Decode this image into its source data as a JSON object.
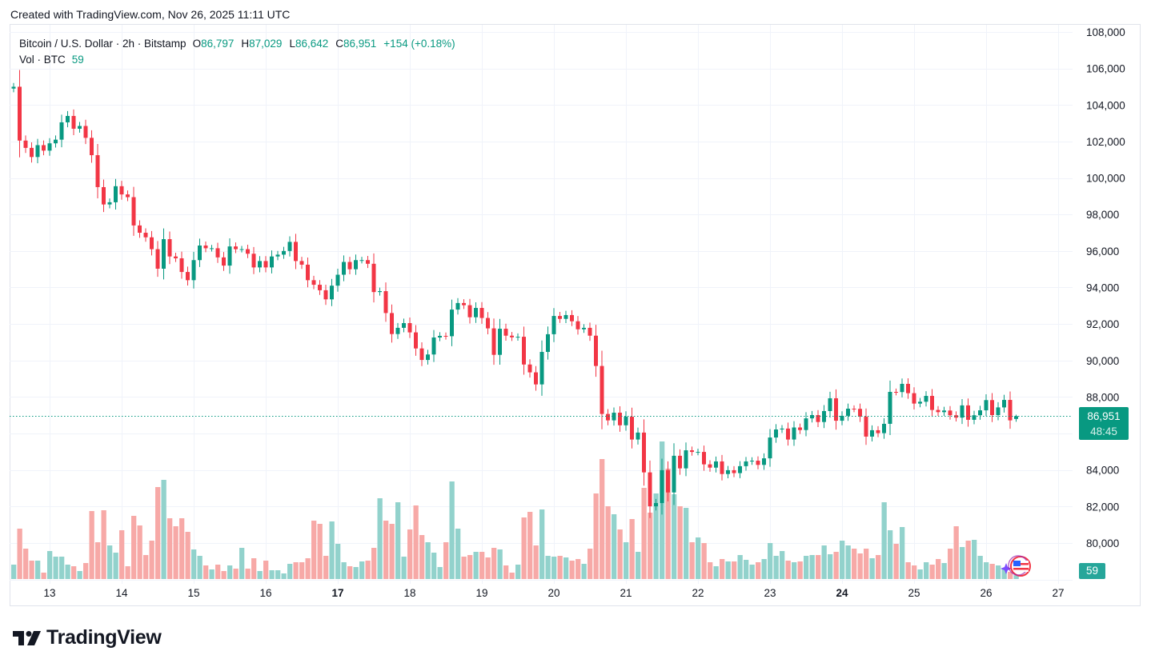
{
  "header": {
    "created": "Created with TradingView.com, Nov 26, 2025 11:11 UTC"
  },
  "legend": {
    "symbol": "Bitcoin / U.S. Dollar · 2h · Bitstamp",
    "open_label": "O",
    "open": "86,797",
    "high_label": "H",
    "high": "87,029",
    "low_label": "L",
    "low": "86,642",
    "close_label": "C",
    "close": "86,951",
    "change": "+154 (+0.18%)",
    "vol_label": "Vol · BTC",
    "vol_value": "59"
  },
  "price_label": {
    "price": "86,951",
    "countdown": "48:45"
  },
  "volume_label": {
    "value": "59"
  },
  "logo": {
    "text": "TradingView"
  },
  "colors": {
    "up": "#089981",
    "down": "#f23645",
    "vol_up": "#92d2cc",
    "vol_down": "#f7a9a7",
    "grid": "#f0f3fa"
  },
  "chart_data": {
    "type": "candlestick",
    "title": "Bitcoin / U.S. Dollar · 2h · Bitstamp",
    "interval": "2h",
    "first_open": 104900,
    "last_candle": {
      "open": 86797,
      "high": 87029,
      "low": 86642,
      "close": 86951
    },
    "close": [
      105000,
      102050,
      101650,
      101150,
      101800,
      101500,
      101900,
      102100,
      103050,
      103400,
      102700,
      102850,
      102200,
      101250,
      99500,
      98550,
      98670,
      99550,
      99100,
      98950,
      97400,
      97000,
      96750,
      96100,
      95030,
      96650,
      95700,
      95600,
      94850,
      94400,
      95500,
      96300,
      96150,
      96150,
      95650,
      95200,
      96250,
      96100,
      96100,
      95850,
      95100,
      95450,
      95100,
      95700,
      95800,
      96000,
      96500,
      95450,
      95250,
      94400,
      94150,
      93850,
      93350,
      94100,
      94700,
      95400,
      95000,
      95500,
      95500,
      95300,
      93750,
      93800,
      92600,
      91450,
      91790,
      92050,
      91540,
      90660,
      90030,
      90330,
      91260,
      91350,
      91330,
      92790,
      93150,
      93030,
      92370,
      92880,
      92330,
      91760,
      90310,
      91740,
      91360,
      91270,
      91300,
      89780,
      89350,
      88690,
      90470,
      91440,
      92440,
      92280,
      92490,
      92150,
      91710,
      91790,
      91360,
      89700,
      87070,
      86720,
      87140,
      86450,
      86920,
      85670,
      86050,
      83870,
      82010,
      82190,
      83990,
      82770,
      84780,
      84090,
      85080,
      84990,
      84990,
      84310,
      84130,
      84470,
      83780,
      83990,
      83830,
      84210,
      84470,
      84510,
      84280,
      84640,
      85780,
      86220,
      86270,
      85670,
      86330,
      86190,
      86830,
      87010,
      86630,
      87230,
      87930,
      86700,
      86970,
      87360,
      87350,
      86920,
      85830,
      86180,
      86020,
      86530,
      88280,
      88270,
      88720,
      88210,
      87640,
      87740,
      88060,
      87290,
      87170,
      87260,
      87000,
      86870,
      87540,
      86750,
      87000,
      87270,
      87830,
      87010,
      87430,
      87840,
      86720,
      86951
    ],
    "volume": [
      216,
      756,
      456,
      276,
      276,
      96,
      420,
      336,
      336,
      216,
      192,
      120,
      240,
      1020,
      552,
      1032,
      504,
      396,
      732,
      192,
      948,
      804,
      360,
      576,
      1380,
      1488,
      912,
      792,
      912,
      708,
      444,
      348,
      204,
      144,
      216,
      120,
      204,
      156,
      468,
      156,
      312,
      120,
      276,
      132,
      132,
      84,
      228,
      252,
      252,
      312,
      876,
      828,
      348,
      864,
      528,
      252,
      192,
      180,
      264,
      276,
      468,
      1212,
      876,
      828,
      1152,
      336,
      744,
      1104,
      660,
      552,
      396,
      180,
      552,
      1464,
      756,
      336,
      360,
      408,
      408,
      324,
      468,
      444,
      204,
      96,
      216,
      924,
      1008,
      504,
      1044,
      348,
      336,
      348,
      324,
      276,
      300,
      228,
      456,
      1284,
      1800,
      1092,
      972,
      744,
      552,
      900,
      408,
      1368,
      996,
      1284,
      2064,
      1656,
      1272,
      1092,
      1068,
      552,
      624,
      540,
      252,
      192,
      300,
      264,
      264,
      360,
      288,
      216,
      252,
      300,
      540,
      348,
      420,
      276,
      252,
      264,
      348,
      360,
      360,
      504,
      372,
      408,
      576,
      504,
      456,
      384,
      456,
      312,
      360,
      1152,
      732,
      528,
      780,
      252,
      204,
      144,
      252,
      216,
      300,
      240,
      456,
      792,
      480,
      576,
      588,
      348,
      252,
      228,
      204,
      168,
      108,
      59
    ],
    "volume_unit": "BTC",
    "ylim": [
      78000,
      108000
    ],
    "y_ticks": [
      {
        "v": 108000,
        "label": "108,000"
      },
      {
        "v": 106000,
        "label": "106,000"
      },
      {
        "v": 104000,
        "label": "104,000"
      },
      {
        "v": 102000,
        "label": "102,000"
      },
      {
        "v": 100000,
        "label": "100,000"
      },
      {
        "v": 98000,
        "label": "98,000"
      },
      {
        "v": 96000,
        "label": "96,000"
      },
      {
        "v": 94000,
        "label": "94,000"
      },
      {
        "v": 92000,
        "label": "92,000"
      },
      {
        "v": 90000,
        "label": "90,000"
      },
      {
        "v": 88000,
        "label": "88,000"
      },
      {
        "v": 84000,
        "label": "84,000"
      },
      {
        "v": 82000,
        "label": "82,000"
      },
      {
        "v": 80000,
        "label": "80,000"
      }
    ],
    "x_ticks": [
      {
        "label": "13",
        "bold": false
      },
      {
        "label": "14",
        "bold": false
      },
      {
        "label": "15",
        "bold": false
      },
      {
        "label": "16",
        "bold": false
      },
      {
        "label": "17",
        "bold": true
      },
      {
        "label": "18",
        "bold": false
      },
      {
        "label": "19",
        "bold": false
      },
      {
        "label": "20",
        "bold": false
      },
      {
        "label": "21",
        "bold": false
      },
      {
        "label": "22",
        "bold": false
      },
      {
        "label": "23",
        "bold": false
      },
      {
        "label": "24",
        "bold": true
      },
      {
        "label": "25",
        "bold": false
      },
      {
        "label": "26",
        "bold": false
      },
      {
        "label": "27",
        "bold": false
      }
    ],
    "candles_per_day": 12,
    "first_day_index": 6,
    "grid": true
  }
}
